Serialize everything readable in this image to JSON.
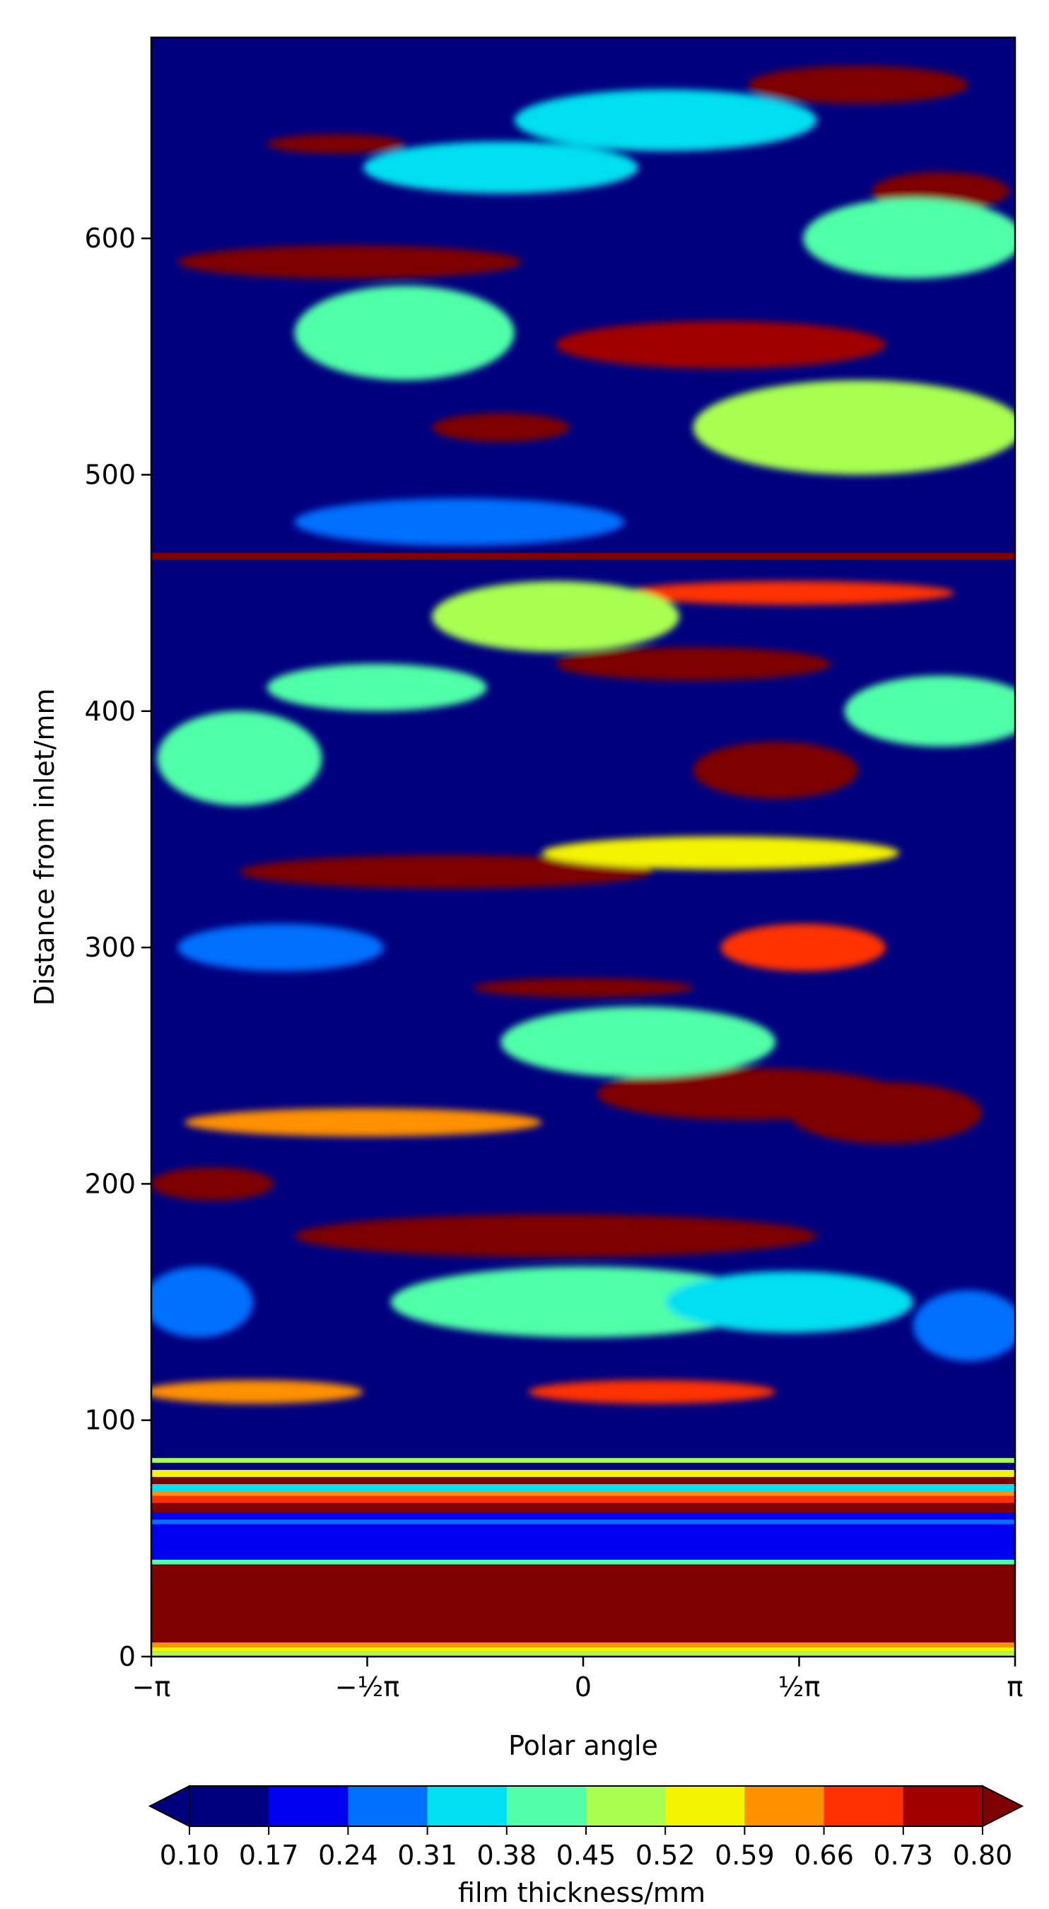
{
  "chart_data": {
    "type": "heatmap",
    "subtype": "filled-contour",
    "xlabel": "Polar angle",
    "ylabel": "Distance from inlet/mm",
    "xlim": [
      -3.14159,
      3.14159
    ],
    "ylim": [
      0,
      685
    ],
    "x_ticks": [
      {
        "value": -3.14159,
        "label": "−π"
      },
      {
        "value": -1.5708,
        "label": "−½π"
      },
      {
        "value": 0,
        "label": "0"
      },
      {
        "value": 1.5708,
        "label": "½π"
      },
      {
        "value": 3.14159,
        "label": "π"
      }
    ],
    "y_ticks": [
      {
        "value": 0,
        "label": "0"
      },
      {
        "value": 100,
        "label": "100"
      },
      {
        "value": 200,
        "label": "200"
      },
      {
        "value": 300,
        "label": "300"
      },
      {
        "value": 400,
        "label": "400"
      },
      {
        "value": 500,
        "label": "500"
      },
      {
        "value": 600,
        "label": "600"
      }
    ],
    "grid": false,
    "colorbar": {
      "label": "film thickness/mm",
      "orientation": "horizontal",
      "placement": "bottom",
      "extend": "both",
      "levels": [
        "0.10",
        "0.17",
        "0.24",
        "0.31",
        "0.38",
        "0.45",
        "0.52",
        "0.59",
        "0.66",
        "0.73",
        "0.80"
      ],
      "colors": [
        "#00007f",
        "#0000f0",
        "#0070ff",
        "#00e0f0",
        "#50ffa8",
        "#a8ff50",
        "#f4f400",
        "#ff9000",
        "#ff3000",
        "#a00000"
      ],
      "under_color": "#00007f",
      "over_color": "#7f0000"
    },
    "horizontal_bands": [
      {
        "y_from": 0,
        "y_to": 2,
        "value": 0.5
      },
      {
        "y_from": 2,
        "y_to": 4,
        "value": 0.58
      },
      {
        "y_from": 4,
        "y_to": 6,
        "value": 0.64
      },
      {
        "y_from": 6,
        "y_to": 39,
        "value": 0.85
      },
      {
        "y_from": 39,
        "y_to": 41,
        "value": 0.38
      },
      {
        "y_from": 41,
        "y_to": 56,
        "value": 0.2
      },
      {
        "y_from": 56,
        "y_to": 58,
        "value": 0.3
      },
      {
        "y_from": 58,
        "y_to": 61,
        "value": 0.2
      },
      {
        "y_from": 61,
        "y_to": 65,
        "value": 0.85
      },
      {
        "y_from": 65,
        "y_to": 68,
        "value": 0.7
      },
      {
        "y_from": 68,
        "y_to": 70,
        "value": 0.62
      },
      {
        "y_from": 70,
        "y_to": 73,
        "value": 0.35
      },
      {
        "y_from": 73,
        "y_to": 76,
        "value": 0.8
      },
      {
        "y_from": 76,
        "y_to": 79,
        "value": 0.55
      },
      {
        "y_from": 79,
        "y_to": 82,
        "value": 0.08
      },
      {
        "y_from": 82,
        "y_to": 84,
        "value": 0.45
      },
      {
        "y_from": 464,
        "y_to": 467,
        "value": 0.85
      }
    ],
    "blobs": [
      {
        "x": 1.2,
        "y": 238,
        "w": 2.2,
        "h": 22,
        "value": 0.85
      },
      {
        "x": -0.2,
        "y": 178,
        "w": 3.8,
        "h": 18,
        "value": 0.85
      },
      {
        "x": -2.7,
        "y": 200,
        "w": 0.9,
        "h": 14,
        "value": 0.85
      },
      {
        "x": -1.0,
        "y": 332,
        "w": 3.0,
        "h": 14,
        "value": 0.85
      },
      {
        "x": 1.4,
        "y": 375,
        "w": 1.2,
        "h": 24,
        "value": 0.85
      },
      {
        "x": -1.7,
        "y": 590,
        "w": 2.5,
        "h": 14,
        "value": 0.85
      },
      {
        "x": 2.0,
        "y": 665,
        "w": 1.6,
        "h": 16,
        "value": 0.8
      },
      {
        "x": 1.0,
        "y": 555,
        "w": 2.4,
        "h": 20,
        "value": 0.75
      },
      {
        "x": -0.6,
        "y": 520,
        "w": 1.0,
        "h": 12,
        "value": 0.85
      },
      {
        "x": 2.2,
        "y": 230,
        "w": 1.4,
        "h": 26,
        "value": 0.85
      },
      {
        "x": 0.8,
        "y": 420,
        "w": 2.0,
        "h": 14,
        "value": 0.85
      },
      {
        "x": -1.8,
        "y": 640,
        "w": 1.0,
        "h": 8,
        "value": 0.85
      },
      {
        "x": 2.6,
        "y": 620,
        "w": 1.0,
        "h": 16,
        "value": 0.85
      },
      {
        "x": 0.0,
        "y": 283,
        "w": 1.6,
        "h": 8,
        "value": 0.85
      },
      {
        "x": 1.6,
        "y": 300,
        "w": 1.2,
        "h": 20,
        "value": 0.7
      },
      {
        "x": -2.4,
        "y": 112,
        "w": 1.6,
        "h": 10,
        "value": 0.65
      },
      {
        "x": 0.5,
        "y": 112,
        "w": 1.8,
        "h": 10,
        "value": 0.7
      },
      {
        "x": -1.6,
        "y": 226,
        "w": 2.6,
        "h": 12,
        "value": 0.62
      },
      {
        "x": 1.5,
        "y": 450,
        "w": 2.4,
        "h": 10,
        "value": 0.7
      },
      {
        "x": -0.2,
        "y": 440,
        "w": 1.8,
        "h": 30,
        "value": 0.45
      },
      {
        "x": 2.0,
        "y": 520,
        "w": 2.4,
        "h": 40,
        "value": 0.45
      },
      {
        "x": -1.3,
        "y": 560,
        "w": 1.6,
        "h": 40,
        "value": 0.4
      },
      {
        "x": -2.5,
        "y": 380,
        "w": 1.2,
        "h": 40,
        "value": 0.42
      },
      {
        "x": 0.4,
        "y": 260,
        "w": 2.0,
        "h": 30,
        "value": 0.38
      },
      {
        "x": 0.0,
        "y": 150,
        "w": 2.8,
        "h": 30,
        "value": 0.4
      },
      {
        "x": 1.5,
        "y": 150,
        "w": 1.8,
        "h": 26,
        "value": 0.35
      },
      {
        "x": -2.2,
        "y": 300,
        "w": 1.5,
        "h": 20,
        "value": 0.3
      },
      {
        "x": 2.4,
        "y": 600,
        "w": 1.6,
        "h": 34,
        "value": 0.4
      },
      {
        "x": -0.6,
        "y": 630,
        "w": 2.0,
        "h": 22,
        "value": 0.32
      },
      {
        "x": 0.6,
        "y": 650,
        "w": 2.2,
        "h": 26,
        "value": 0.35
      },
      {
        "x": -0.9,
        "y": 480,
        "w": 2.4,
        "h": 20,
        "value": 0.3
      },
      {
        "x": 1.0,
        "y": 340,
        "w": 2.6,
        "h": 14,
        "value": 0.55
      },
      {
        "x": -1.5,
        "y": 410,
        "w": 1.6,
        "h": 20,
        "value": 0.4
      },
      {
        "x": 2.6,
        "y": 400,
        "w": 1.4,
        "h": 30,
        "value": 0.4
      },
      {
        "x": -2.8,
        "y": 150,
        "w": 0.8,
        "h": 30,
        "value": 0.28
      },
      {
        "x": 2.8,
        "y": 140,
        "w": 0.8,
        "h": 30,
        "value": 0.3
      }
    ]
  }
}
